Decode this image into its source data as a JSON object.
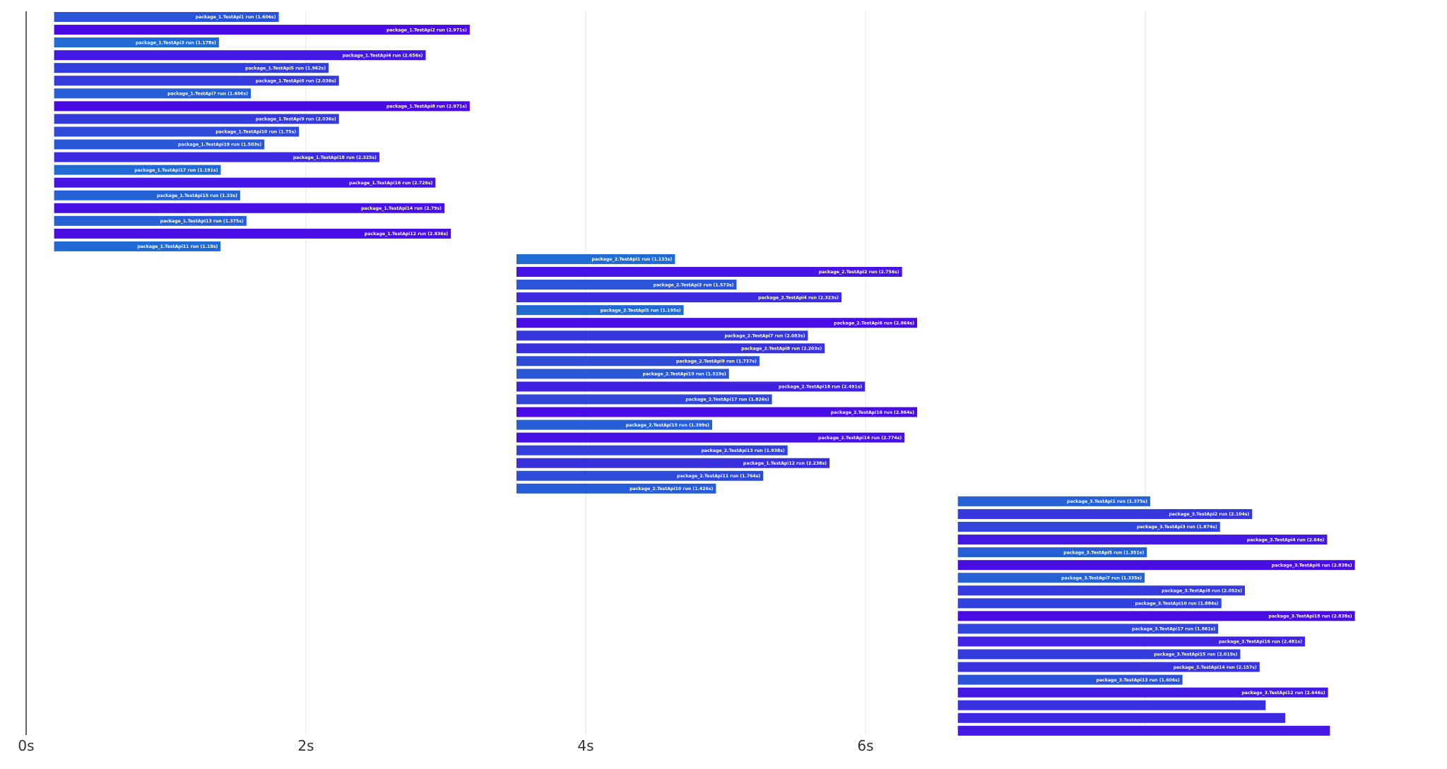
{
  "chart_data": {
    "type": "bar",
    "orientation": "horizontal",
    "x_unit": "s",
    "xlim": [
      0,
      10
    ],
    "x_ticks": [
      {
        "value": 0,
        "label": "0s"
      },
      {
        "value": 2,
        "label": "2s"
      },
      {
        "value": 4,
        "label": "4s"
      },
      {
        "value": 6,
        "label": "6s"
      }
    ],
    "grid": true,
    "colors": {
      "fast": "#1e6fd4",
      "slow": "#4a0ae6"
    },
    "bars": [
      {
        "label": "package_1.TestApi1 run (1.606s)",
        "start": 0.2,
        "duration": 1.606
      },
      {
        "label": "package_1.TestApi2 run (2.971s)",
        "start": 0.2,
        "duration": 2.971
      },
      {
        "label": "package_1.TestApi3 run (1.178s)",
        "start": 0.2,
        "duration": 1.178
      },
      {
        "label": "package_1.TestApi4 run (2.656s)",
        "start": 0.2,
        "duration": 2.656
      },
      {
        "label": "package_1.TestApi5 run (1.962s)",
        "start": 0.2,
        "duration": 1.962
      },
      {
        "label": "package_1.TestApi6 run (2.036s)",
        "start": 0.2,
        "duration": 2.036
      },
      {
        "label": "package_1.TestApi7 run (1.406s)",
        "start": 0.2,
        "duration": 1.406
      },
      {
        "label": "package_1.TestApi8 run (2.971s)",
        "start": 0.2,
        "duration": 2.971
      },
      {
        "label": "package_1.TestApi9 run (2.036s)",
        "start": 0.2,
        "duration": 2.036
      },
      {
        "label": "package_1.TestApi10 run (1.75s)",
        "start": 0.2,
        "duration": 1.75
      },
      {
        "label": "package_1.TestApi19 run (1.503s)",
        "start": 0.2,
        "duration": 1.503
      },
      {
        "label": "package_1.TestApi18 run (2.325s)",
        "start": 0.2,
        "duration": 2.325
      },
      {
        "label": "package_1.TestApi17 run (1.191s)",
        "start": 0.2,
        "duration": 1.191
      },
      {
        "label": "package_1.TestApi16 run (2.726s)",
        "start": 0.2,
        "duration": 2.726
      },
      {
        "label": "package_1.TestApi15 run (1.33s)",
        "start": 0.2,
        "duration": 1.33
      },
      {
        "label": "package_1.TestApi14 run (2.79s)",
        "start": 0.2,
        "duration": 2.79
      },
      {
        "label": "package_1.TestApi13 run (1.375s)",
        "start": 0.2,
        "duration": 1.375
      },
      {
        "label": "package_1.TestApi12 run (2.836s)",
        "start": 0.2,
        "duration": 2.836
      },
      {
        "label": "package_1.TestApi11 run (1.19s)",
        "start": 0.2,
        "duration": 1.19
      },
      {
        "label": "package_2.TestApi1 run (1.133s)",
        "start": 3.505,
        "duration": 1.133
      },
      {
        "label": "package_2.TestApi2 run (2.756s)",
        "start": 3.505,
        "duration": 2.756
      },
      {
        "label": "package_2.TestApi3 run (1.573s)",
        "start": 3.505,
        "duration": 1.573
      },
      {
        "label": "package_2.TestApi4 run (2.323s)",
        "start": 3.505,
        "duration": 2.323
      },
      {
        "label": "package_2.TestApi5 run (1.195s)",
        "start": 3.505,
        "duration": 1.195
      },
      {
        "label": "package_2.TestApi6 run (2.864s)",
        "start": 3.505,
        "duration": 2.864
      },
      {
        "label": "package_2.TestApi7 run (2.083s)",
        "start": 3.505,
        "duration": 2.083
      },
      {
        "label": "package_2.TestApi8 run (2.203s)",
        "start": 3.505,
        "duration": 2.203
      },
      {
        "label": "package_2.TestApi9 run (1.737s)",
        "start": 3.505,
        "duration": 1.737
      },
      {
        "label": "package_2.TestApi19 run (1.519s)",
        "start": 3.505,
        "duration": 1.519
      },
      {
        "label": "package_2.TestApi18 run (2.491s)",
        "start": 3.505,
        "duration": 2.491
      },
      {
        "label": "package_2.TestApi17 run (1.826s)",
        "start": 3.505,
        "duration": 1.826
      },
      {
        "label": "package_2.TestApi16 run (2.864s)",
        "start": 3.505,
        "duration": 2.864
      },
      {
        "label": "package_2.TestApi15 run (1.399s)",
        "start": 3.505,
        "duration": 1.399
      },
      {
        "label": "package_2.TestApi14 run (2.774s)",
        "start": 3.505,
        "duration": 2.774
      },
      {
        "label": "package_2.TestApi13 run (1.938s)",
        "start": 3.505,
        "duration": 1.938
      },
      {
        "label": "package_1.TestApi12 run (2.238s)",
        "start": 3.505,
        "duration": 2.238
      },
      {
        "label": "package_2.TestApi11 run (1.764s)",
        "start": 3.505,
        "duration": 1.764
      },
      {
        "label": "package_2.TestApi10 run (1.426s)",
        "start": 3.505,
        "duration": 1.426
      },
      {
        "label": "package_3.TestApi1 run (1.375s)",
        "start": 6.66,
        "duration": 1.375
      },
      {
        "label": "package_3.TestApi2 run (2.104s)",
        "start": 6.66,
        "duration": 2.104
      },
      {
        "label": "package_3.TestApi3 run (1.874s)",
        "start": 6.66,
        "duration": 1.874
      },
      {
        "label": "package_3.TestApi4 run (2.64s)",
        "start": 6.66,
        "duration": 2.64
      },
      {
        "label": "package_3.TestApi5 run (1.351s)",
        "start": 6.66,
        "duration": 1.351
      },
      {
        "label": "package_3.TestApi6 run (2.838s)",
        "start": 6.66,
        "duration": 2.838
      },
      {
        "label": "package_3.TestApi7 run (1.335s)",
        "start": 6.66,
        "duration": 1.335
      },
      {
        "label": "package_3.TestApi8 run (2.052s)",
        "start": 6.66,
        "duration": 2.052
      },
      {
        "label": "package_3.TestApi10 run (1.884s)",
        "start": 6.66,
        "duration": 1.884
      },
      {
        "label": "package_3.TestApi18 run (2.838s)",
        "start": 6.66,
        "duration": 2.838
      },
      {
        "label": "package_3.TestApi17 run (1.861s)",
        "start": 6.66,
        "duration": 1.861
      },
      {
        "label": "package_3.TestApi16 run (2.481s)",
        "start": 6.66,
        "duration": 2.481
      },
      {
        "label": "package_3.TestApi15 run (2.019s)",
        "start": 6.66,
        "duration": 2.019
      },
      {
        "label": "package_3.TestApi14 run (2.157s)",
        "start": 6.66,
        "duration": 2.157
      },
      {
        "label": "package_3.TestApi13 run (1.606s)",
        "start": 6.66,
        "duration": 1.606
      },
      {
        "label": "package_3.TestApi12 run (2.646s)",
        "start": 6.66,
        "duration": 2.646
      },
      {
        "label": "",
        "start": 6.66,
        "duration": 2.2
      },
      {
        "label": "",
        "start": 6.66,
        "duration": 2.34
      },
      {
        "label": "",
        "start": 6.66,
        "duration": 2.66
      }
    ]
  }
}
